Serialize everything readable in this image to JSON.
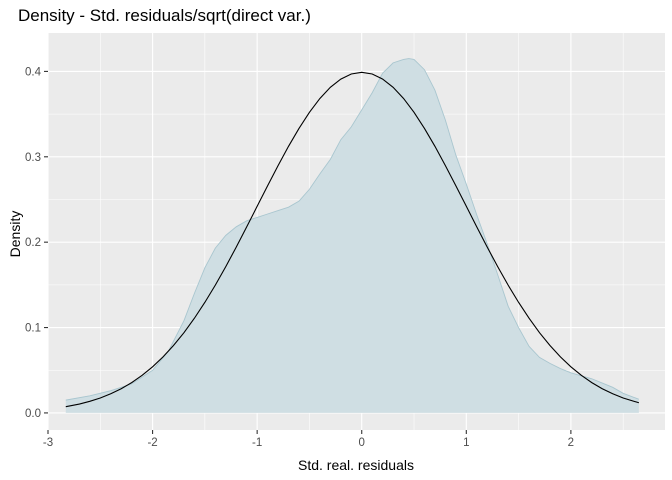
{
  "chart_data": {
    "type": "area",
    "title": "Density - Std. residuals/sqrt(direct var.)",
    "xlabel": "Std. real. residuals",
    "ylabel": "Density",
    "xlim": [
      -3,
      2.9
    ],
    "ylim": [
      -0.02,
      0.445
    ],
    "x_ticks": [
      -3,
      -2,
      -1,
      0,
      1,
      2
    ],
    "x_tick_labels": [
      "-3",
      "-2",
      "-1",
      "0",
      "1",
      "2"
    ],
    "y_ticks": [
      0.0,
      0.1,
      0.2,
      0.3,
      0.4
    ],
    "y_tick_labels": [
      "0.0",
      "0.1",
      "0.2",
      "0.3",
      "0.4"
    ],
    "grid": true,
    "colors": {
      "panel_background": "#ebebeb",
      "grid_major": "#ffffff",
      "density_fill": "#cfdee3",
      "density_outline": "#a9c6cf",
      "normal_line": "#000000"
    },
    "series": [
      {
        "kind": "area",
        "x": [
          -2.83,
          -2.6,
          -2.4,
          -2.2,
          -2.0,
          -1.85,
          -1.7,
          -1.6,
          -1.5,
          -1.4,
          -1.3,
          -1.2,
          -1.1,
          -1.0,
          -0.9,
          -0.8,
          -0.7,
          -0.6,
          -0.5,
          -0.4,
          -0.3,
          -0.2,
          -0.1,
          0.0,
          0.1,
          0.2,
          0.3,
          0.4,
          0.45,
          0.5,
          0.6,
          0.7,
          0.8,
          0.9,
          1.0,
          1.1,
          1.2,
          1.3,
          1.4,
          1.5,
          1.6,
          1.7,
          1.8,
          1.9,
          2.0,
          2.2,
          2.4,
          2.5,
          2.65
        ],
        "y": [
          0.015,
          0.02,
          0.026,
          0.034,
          0.05,
          0.072,
          0.108,
          0.14,
          0.17,
          0.193,
          0.208,
          0.218,
          0.225,
          0.229,
          0.233,
          0.237,
          0.241,
          0.248,
          0.262,
          0.28,
          0.297,
          0.32,
          0.335,
          0.355,
          0.375,
          0.398,
          0.41,
          0.414,
          0.415,
          0.414,
          0.402,
          0.378,
          0.343,
          0.302,
          0.268,
          0.232,
          0.198,
          0.162,
          0.125,
          0.1,
          0.078,
          0.065,
          0.058,
          0.052,
          0.047,
          0.04,
          0.03,
          0.023,
          0.016
        ]
      },
      {
        "kind": "line",
        "x": [
          -2.83,
          -2.7,
          -2.6,
          -2.5,
          -2.4,
          -2.3,
          -2.2,
          -2.1,
          -2.0,
          -1.9,
          -1.8,
          -1.7,
          -1.6,
          -1.5,
          -1.4,
          -1.3,
          -1.2,
          -1.1,
          -1.0,
          -0.9,
          -0.8,
          -0.7,
          -0.6,
          -0.5,
          -0.4,
          -0.3,
          -0.2,
          -0.1,
          0.0,
          0.1,
          0.2,
          0.3,
          0.4,
          0.5,
          0.6,
          0.7,
          0.8,
          0.9,
          1.0,
          1.1,
          1.2,
          1.3,
          1.4,
          1.5,
          1.6,
          1.7,
          1.8,
          1.9,
          2.0,
          2.1,
          2.2,
          2.3,
          2.4,
          2.5,
          2.65
        ],
        "y": [
          0.0073,
          0.0104,
          0.0136,
          0.0175,
          0.0224,
          0.0283,
          0.0355,
          0.044,
          0.054,
          0.0656,
          0.079,
          0.094,
          0.1109,
          0.1295,
          0.1497,
          0.1714,
          0.1942,
          0.2179,
          0.242,
          0.2661,
          0.2897,
          0.3123,
          0.3332,
          0.3521,
          0.3683,
          0.3814,
          0.391,
          0.397,
          0.3989,
          0.397,
          0.391,
          0.3814,
          0.3683,
          0.3521,
          0.3332,
          0.3123,
          0.2897,
          0.2661,
          0.242,
          0.2179,
          0.1942,
          0.1714,
          0.1497,
          0.1295,
          0.1109,
          0.094,
          0.079,
          0.0656,
          0.054,
          0.044,
          0.0355,
          0.0283,
          0.0224,
          0.0175,
          0.0119
        ]
      }
    ]
  }
}
